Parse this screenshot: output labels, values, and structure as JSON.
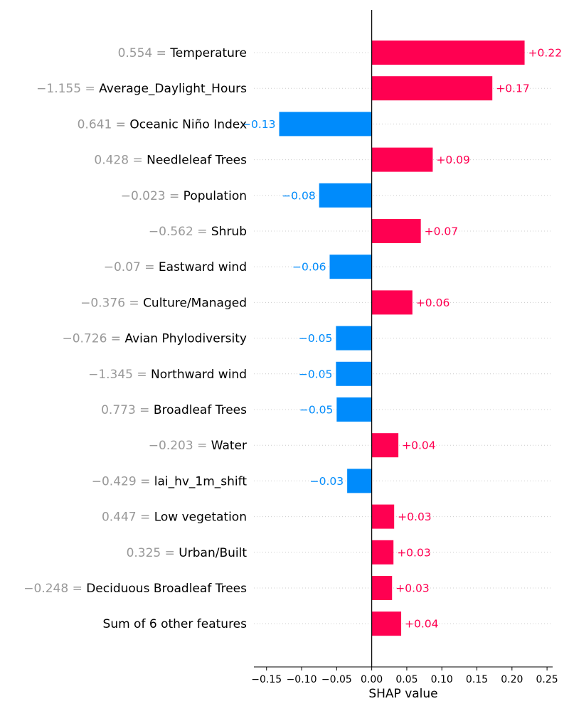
{
  "chart_data": {
    "type": "bar",
    "orientation": "horizontal",
    "xlabel": "SHAP value",
    "xlim": [
      -0.168,
      0.258
    ],
    "xticks": [
      -0.15,
      -0.1,
      -0.05,
      0.0,
      0.05,
      0.1,
      0.15,
      0.2,
      0.25
    ],
    "xtick_labels": [
      "−0.15",
      "−0.10",
      "−0.05",
      "0.00",
      "0.05",
      "0.10",
      "0.15",
      "0.20",
      "0.25"
    ],
    "colors": {
      "positive": "#ff0051",
      "negative": "#008bfb",
      "feature_value_text": "#999999"
    },
    "features": [
      {
        "value_text": "0.554",
        "name": "Temperature",
        "shap": 0.218,
        "label": "+0.22"
      },
      {
        "value_text": "−1.155",
        "name": "Average_Daylight_Hours",
        "shap": 0.172,
        "label": "+0.17"
      },
      {
        "value_text": "0.641",
        "name": "Oceanic Niño Index",
        "shap": -0.132,
        "label": "−0.13"
      },
      {
        "value_text": "0.428",
        "name": "Needleleaf Trees",
        "shap": 0.087,
        "label": "+0.09"
      },
      {
        "value_text": "−0.023",
        "name": "Population",
        "shap": -0.075,
        "label": "−0.08"
      },
      {
        "value_text": "−0.562",
        "name": "Shrub",
        "shap": 0.07,
        "label": "+0.07"
      },
      {
        "value_text": "−0.07",
        "name": "Eastward wind",
        "shap": -0.06,
        "label": "−0.06"
      },
      {
        "value_text": "−0.376",
        "name": "Culture/Managed",
        "shap": 0.058,
        "label": "+0.06"
      },
      {
        "value_text": "−0.726",
        "name": "Avian Phylodiversity",
        "shap": -0.051,
        "label": "−0.05"
      },
      {
        "value_text": "−1.345",
        "name": "Northward wind",
        "shap": -0.051,
        "label": "−0.05"
      },
      {
        "value_text": "0.773",
        "name": "Broadleaf Trees",
        "shap": -0.05,
        "label": "−0.05"
      },
      {
        "value_text": "−0.203",
        "name": "Water",
        "shap": 0.038,
        "label": "+0.04"
      },
      {
        "value_text": "−0.429",
        "name": "lai_hv_1m_shift",
        "shap": -0.035,
        "label": "−0.03"
      },
      {
        "value_text": "0.447",
        "name": "Low vegetation",
        "shap": 0.032,
        "label": "+0.03"
      },
      {
        "value_text": "0.325",
        "name": "Urban/Built",
        "shap": 0.031,
        "label": "+0.03"
      },
      {
        "value_text": "−0.248",
        "name": "Deciduous Broadleaf Trees",
        "shap": 0.029,
        "label": "+0.03"
      },
      {
        "value_text": "",
        "name": "Sum of 6 other features",
        "shap": 0.042,
        "label": "+0.04"
      }
    ]
  }
}
